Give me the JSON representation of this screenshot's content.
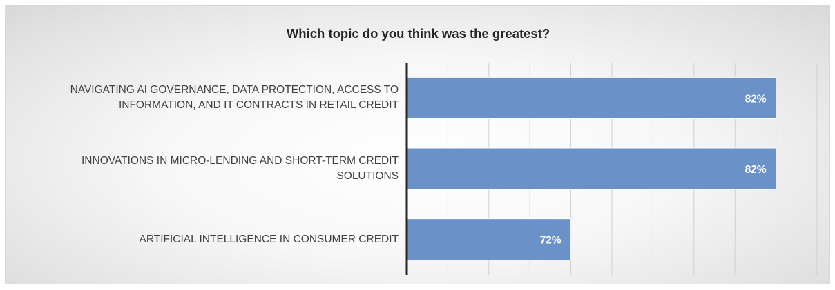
{
  "chart_data": {
    "type": "bar",
    "orientation": "horizontal",
    "title": "Which topic do you think was the greatest?",
    "categories": [
      "NAVIGATING AI GOVERNANCE, DATA PROTECTION, ACCESS TO INFORMATION, AND IT CONTRACTS IN RETAIL CREDIT",
      "INNOVATIONS IN MICRO-LENDING AND SHORT-TERM CREDIT SOLUTIONS",
      "ARTIFICIAL INTELLIGENCE IN CONSUMER CREDIT"
    ],
    "category_lines": [
      [
        "NAVIGATING AI GOVERNANCE, DATA PROTECTION, ACCESS TO",
        "INFORMATION, AND IT CONTRACTS IN RETAIL CREDIT"
      ],
      [
        "INNOVATIONS IN MICRO-LENDING AND SHORT-TERM CREDIT",
        "SOLUTIONS"
      ],
      [
        "ARTIFICIAL INTELLIGENCE IN CONSUMER CREDIT"
      ]
    ],
    "values": [
      82,
      82,
      72
    ],
    "data_labels": [
      "82%",
      "82%",
      "72%"
    ],
    "xlim": [
      64,
      84
    ],
    "x_gridlines": [
      64,
      66,
      68,
      70,
      72,
      74,
      76,
      78,
      80,
      82,
      84
    ],
    "grid": true,
    "legend": "none",
    "bar_color": "#6a92c9",
    "bar_border_color": "#ffffff",
    "axis_color": "#262626",
    "grid_color": "#d0d0d0",
    "label_color": "#ffffff"
  }
}
